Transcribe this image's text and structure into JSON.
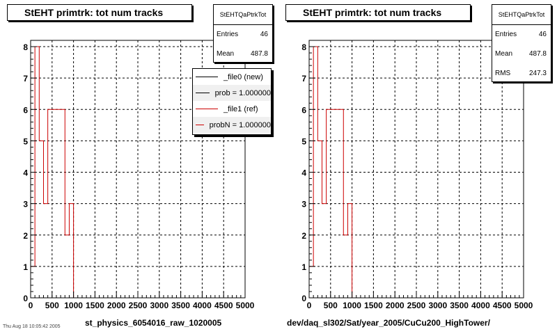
{
  "chart_data": [
    {
      "type": "histogram-step",
      "title": "StEHT primtrk: tot num tracks",
      "xlabel": "st_physics_6054016_raw_1020005",
      "xlim": [
        0,
        5000
      ],
      "ylim": [
        0,
        8.2
      ],
      "xticks": [
        0,
        500,
        1000,
        1500,
        2000,
        2500,
        3000,
        3500,
        4000,
        4500,
        5000
      ],
      "yticks": [
        0,
        1,
        2,
        3,
        4,
        5,
        6,
        7,
        8
      ],
      "grid": true,
      "series": [
        {
          "color": "#cc0000",
          "bins": [
            [
              0,
              100,
              1
            ],
            [
              100,
              200,
              8
            ],
            [
              200,
              300,
              5
            ],
            [
              300,
              400,
              3
            ],
            [
              400,
              800,
              6
            ],
            [
              800,
              900,
              2
            ],
            [
              900,
              1000,
              3
            ],
            [
              1000,
              5000,
              0
            ]
          ]
        }
      ],
      "stats": {
        "name": "StEHTQaPtrkTot",
        "rows": [
          {
            "label": "Entries",
            "value": "46"
          },
          {
            "label": "Mean",
            "value": "487.8"
          }
        ]
      },
      "legend": [
        {
          "label": "_file0 (new)",
          "color": "#000000"
        },
        {
          "label": "prob = 1.000000",
          "color": "#000000"
        },
        {
          "label": "_file1 (ref)",
          "color": "#cc0000"
        },
        {
          "label": "probN = 1.000000",
          "color": "#cc0000"
        }
      ]
    },
    {
      "type": "histogram-step",
      "title": "StEHT primtrk: tot num tracks",
      "xlabel": "dev/daq_sl302/Sat/year_2005/CuCu200_HighTower/",
      "xlim": [
        0,
        5000
      ],
      "ylim": [
        0,
        8.2
      ],
      "xticks": [
        0,
        500,
        1000,
        1500,
        2000,
        2500,
        3000,
        3500,
        4000,
        4500,
        5000
      ],
      "yticks": [
        0,
        1,
        2,
        3,
        4,
        5,
        6,
        7,
        8
      ],
      "grid": true,
      "series": [
        {
          "color": "#cc0000",
          "bins": [
            [
              0,
              100,
              1
            ],
            [
              100,
              200,
              8
            ],
            [
              200,
              300,
              5
            ],
            [
              300,
              400,
              3
            ],
            [
              400,
              800,
              6
            ],
            [
              800,
              900,
              2
            ],
            [
              900,
              1000,
              3
            ]
          ]
        }
      ],
      "stats": {
        "name": "StEHTQaPtrkTot",
        "rows": [
          {
            "label": "Entries",
            "value": "46"
          },
          {
            "label": "Mean",
            "value": "487.8"
          },
          {
            "label": "RMS",
            "value": "247.3"
          }
        ]
      }
    }
  ],
  "footer_text": "Thu Aug 18 10:05:42 2005"
}
